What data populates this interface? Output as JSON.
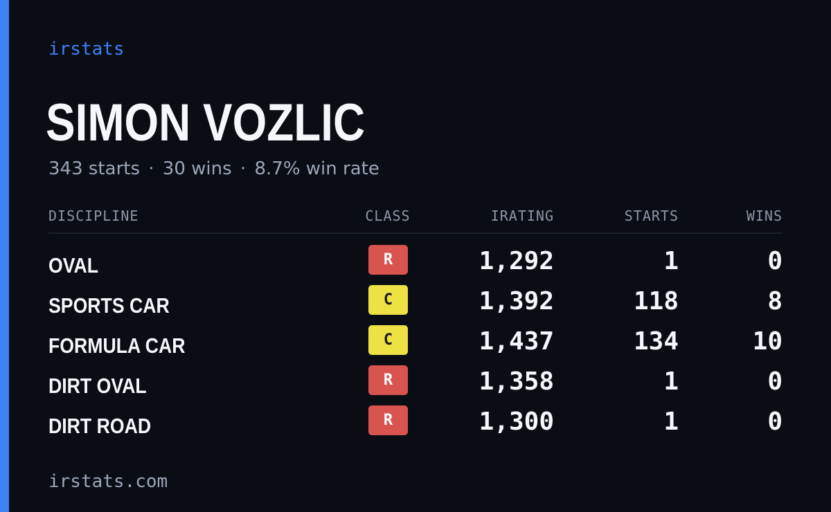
{
  "brand": "irstats",
  "driver": {
    "name": "SIMON VOZLIC",
    "starts_text": "343 starts",
    "wins_text": "30 wins",
    "win_rate_text": "8.7% win rate",
    "separator": "·"
  },
  "table": {
    "headers": {
      "discipline": "DISCIPLINE",
      "class": "CLASS",
      "irating": "IRATING",
      "starts": "STARTS",
      "wins": "WINS"
    },
    "rows": [
      {
        "discipline": "OVAL",
        "class": "R",
        "irating": "1,292",
        "starts": "1",
        "wins": "0"
      },
      {
        "discipline": "SPORTS CAR",
        "class": "C",
        "irating": "1,392",
        "starts": "118",
        "wins": "8"
      },
      {
        "discipline": "FORMULA CAR",
        "class": "C",
        "irating": "1,437",
        "starts": "134",
        "wins": "10"
      },
      {
        "discipline": "DIRT OVAL",
        "class": "R",
        "irating": "1,358",
        "starts": "1",
        "wins": "0"
      },
      {
        "discipline": "DIRT ROAD",
        "class": "R",
        "irating": "1,300",
        "starts": "1",
        "wins": "0"
      }
    ]
  },
  "footer": "irstats.com",
  "colors": {
    "background": "#0a0d14",
    "accent": "#3b82f6",
    "class_r": "#d9534f",
    "class_c": "#ece244"
  }
}
